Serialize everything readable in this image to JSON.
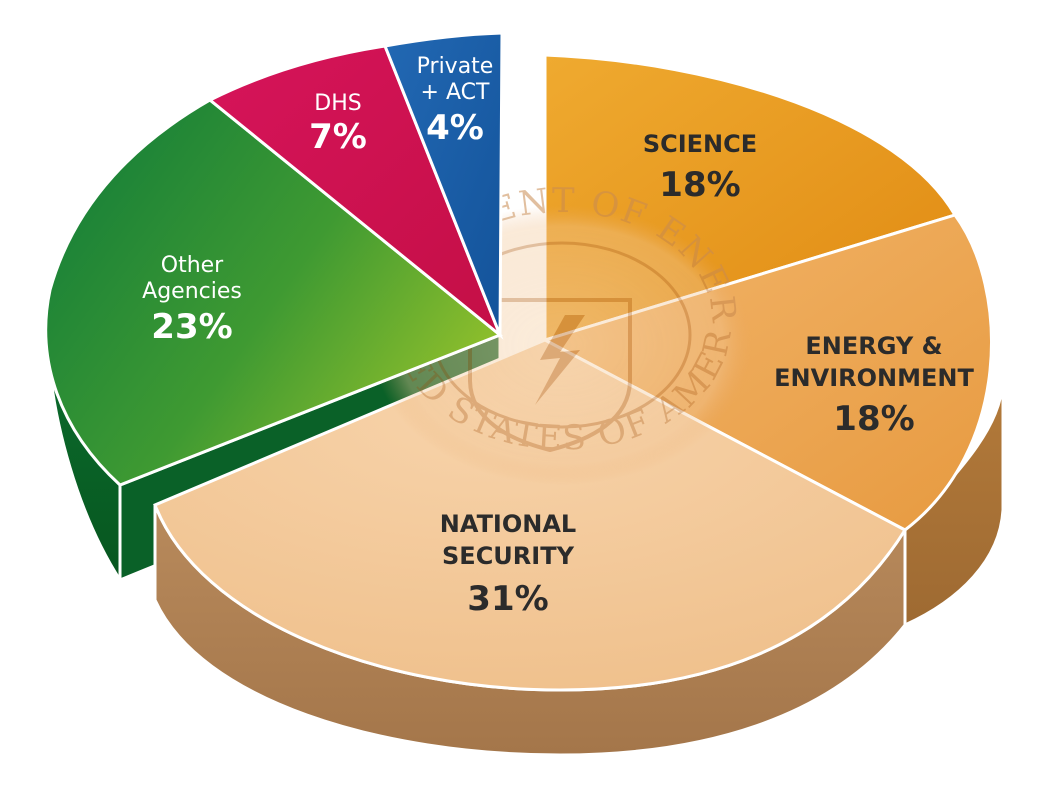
{
  "chart_data": {
    "type": "pie",
    "title": "",
    "slices": [
      {
        "key": "science",
        "label_lines": [
          "SCIENCE"
        ],
        "percent_label": "18%",
        "value": 18,
        "color": "#E8951C"
      },
      {
        "key": "energy",
        "label_lines": [
          "ENERGY &",
          "ENVIRONMENT"
        ],
        "percent_label": "18%",
        "value": 18,
        "color": "#EDA651"
      },
      {
        "key": "national-security",
        "label_lines": [
          "NATIONAL",
          "SECURITY"
        ],
        "percent_label": "31%",
        "value": 31,
        "color": "#F2C594"
      },
      {
        "key": "other-agencies",
        "label_lines": [
          "Other",
          "Agencies"
        ],
        "percent_label": "23%",
        "value": 23,
        "color": "#2B8A35"
      },
      {
        "key": "dhs",
        "label_lines": [
          "DHS"
        ],
        "percent_label": "7%",
        "value": 7,
        "color": "#D11150"
      },
      {
        "key": "private-act",
        "label_lines": [
          "Private",
          "+ ACT"
        ],
        "percent_label": "4%",
        "value": 4,
        "color": "#1D5FA8"
      }
    ],
    "exploded": [
      "other-agencies",
      "dhs",
      "private-act"
    ]
  },
  "seal": {
    "top_text": "DEPARTMENT OF ENERGY",
    "bottom_text": "UNITED STATES OF AMERICA"
  }
}
